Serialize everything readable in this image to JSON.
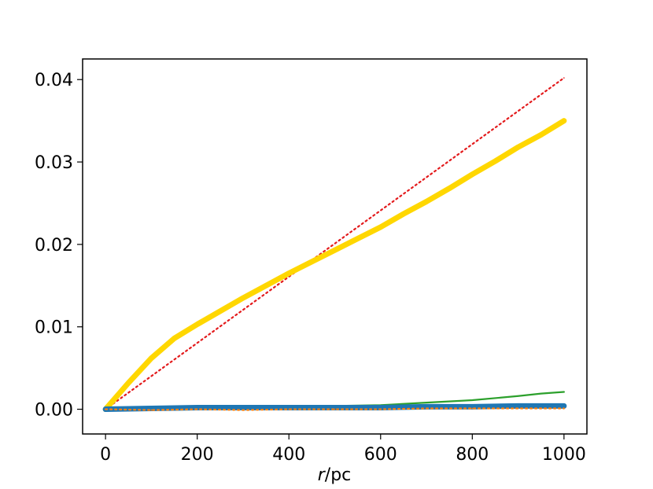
{
  "chart_data": {
    "type": "line",
    "title": "",
    "xlabel_italic": "r",
    "xlabel_rest": "/pc",
    "ylabel": "",
    "xlim": [
      -50,
      1050
    ],
    "ylim": [
      -0.003,
      0.0425
    ],
    "xticks": [
      0,
      200,
      400,
      600,
      800,
      1000
    ],
    "xtick_labels": [
      "0",
      "200",
      "400",
      "600",
      "800",
      "1000"
    ],
    "yticks": [
      0.0,
      0.01,
      0.02,
      0.03,
      0.04
    ],
    "ytick_labels": [
      "0.00",
      "0.01",
      "0.02",
      "0.03",
      "0.04"
    ],
    "grid": false,
    "legend": "none",
    "series": [
      {
        "color": "#e31a1c",
        "style": "dotted",
        "x": [
          0,
          1000
        ],
        "y": [
          0.0,
          0.0402
        ]
      },
      {
        "color": "#ffd700",
        "style": "solid-thick",
        "x": [
          0,
          50,
          100,
          150,
          200,
          250,
          300,
          350,
          400,
          450,
          500,
          550,
          600,
          650,
          700,
          750,
          800,
          850,
          900,
          950,
          1000
        ],
        "y": [
          0.0,
          0.0032,
          0.0062,
          0.0086,
          0.0103,
          0.0119,
          0.0135,
          0.015,
          0.0165,
          0.0179,
          0.0193,
          0.0207,
          0.0221,
          0.0237,
          0.0252,
          0.0268,
          0.0285,
          0.0301,
          0.0318,
          0.0333,
          0.035
        ]
      },
      {
        "color": "#2ca02c",
        "style": "solid",
        "x": [
          0,
          100,
          200,
          300,
          400,
          500,
          600,
          700,
          800,
          900,
          950,
          1000
        ],
        "y": [
          0.0,
          0.0001,
          0.0001,
          0.0002,
          0.0003,
          0.0004,
          0.0005,
          0.0008,
          0.0011,
          0.0016,
          0.0019,
          0.0021
        ]
      },
      {
        "color": "#1f77b4",
        "style": "solid-thick",
        "x": [
          0,
          100,
          200,
          300,
          400,
          500,
          600,
          700,
          800,
          900,
          1000
        ],
        "y": [
          0.0,
          0.0001,
          0.0002,
          0.0002,
          0.0002,
          0.0002,
          0.0002,
          0.0003,
          0.0003,
          0.0004,
          0.0004
        ]
      },
      {
        "color": "#ff7f0e",
        "style": "dotted",
        "x": [
          0,
          100,
          200,
          300,
          400,
          500,
          600,
          700,
          800,
          900,
          1000
        ],
        "y": [
          0.0,
          -0.0001,
          0.0,
          -0.0001,
          0.0,
          0.0,
          0.0,
          0.0001,
          0.0001,
          0.0001,
          0.0001
        ]
      }
    ]
  }
}
